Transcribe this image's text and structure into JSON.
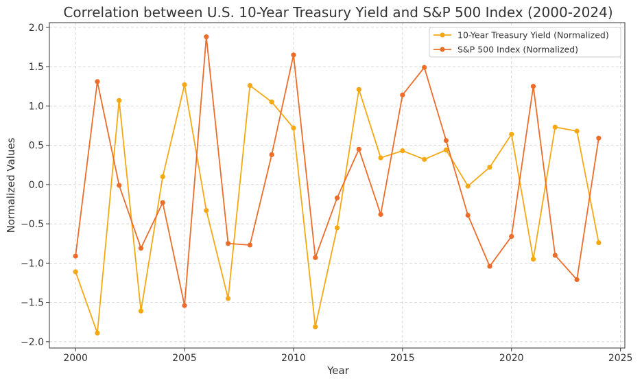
{
  "chart_data": {
    "type": "line",
    "title": "Correlation between U.S. 10-Year Treasury Yield and S&P 500 Index (2000-2024)",
    "xlabel": "Year",
    "ylabel": "Normalized Values",
    "xlim": [
      1998.8,
      2025.2
    ],
    "ylim": [
      -2.08,
      2.06
    ],
    "x_ticks": [
      2000,
      2005,
      2010,
      2015,
      2020,
      2025
    ],
    "x_tick_labels": [
      "2000",
      "2005",
      "2010",
      "2015",
      "2020",
      "2025"
    ],
    "y_ticks": [
      -2.0,
      -1.5,
      -1.0,
      -0.5,
      0.0,
      0.5,
      1.0,
      1.5,
      2.0
    ],
    "y_tick_labels": [
      "−2.0",
      "−1.5",
      "−1.0",
      "−0.5",
      "0.0",
      "0.5",
      "1.0",
      "1.5",
      "2.0"
    ],
    "grid": true,
    "legend_position": "top-right",
    "x": [
      2000,
      2001,
      2002,
      2003,
      2004,
      2005,
      2006,
      2007,
      2008,
      2009,
      2010,
      2011,
      2012,
      2013,
      2014,
      2015,
      2016,
      2017,
      2018,
      2019,
      2020,
      2021,
      2022,
      2023,
      2024
    ],
    "series": [
      {
        "name": "10-Year Treasury Yield (Normalized)",
        "color": "#f5a814",
        "values": [
          -1.11,
          -1.89,
          1.07,
          -1.61,
          0.1,
          1.27,
          -0.33,
          -1.45,
          1.26,
          1.05,
          0.72,
          -1.81,
          -0.55,
          1.21,
          0.34,
          0.43,
          0.32,
          0.44,
          -0.02,
          0.22,
          0.64,
          -0.95,
          0.73,
          0.68,
          -0.74
        ]
      },
      {
        "name": "S&P 500 Index (Normalized)",
        "color": "#ec6c2a",
        "values": [
          -0.91,
          1.31,
          -0.01,
          -0.81,
          -0.23,
          -1.54,
          1.88,
          -0.75,
          -0.77,
          0.38,
          1.65,
          -0.93,
          -0.17,
          0.45,
          -0.38,
          1.14,
          1.49,
          0.56,
          -0.39,
          -1.04,
          -0.66,
          1.25,
          -0.9,
          -1.21,
          0.59
        ]
      }
    ]
  }
}
